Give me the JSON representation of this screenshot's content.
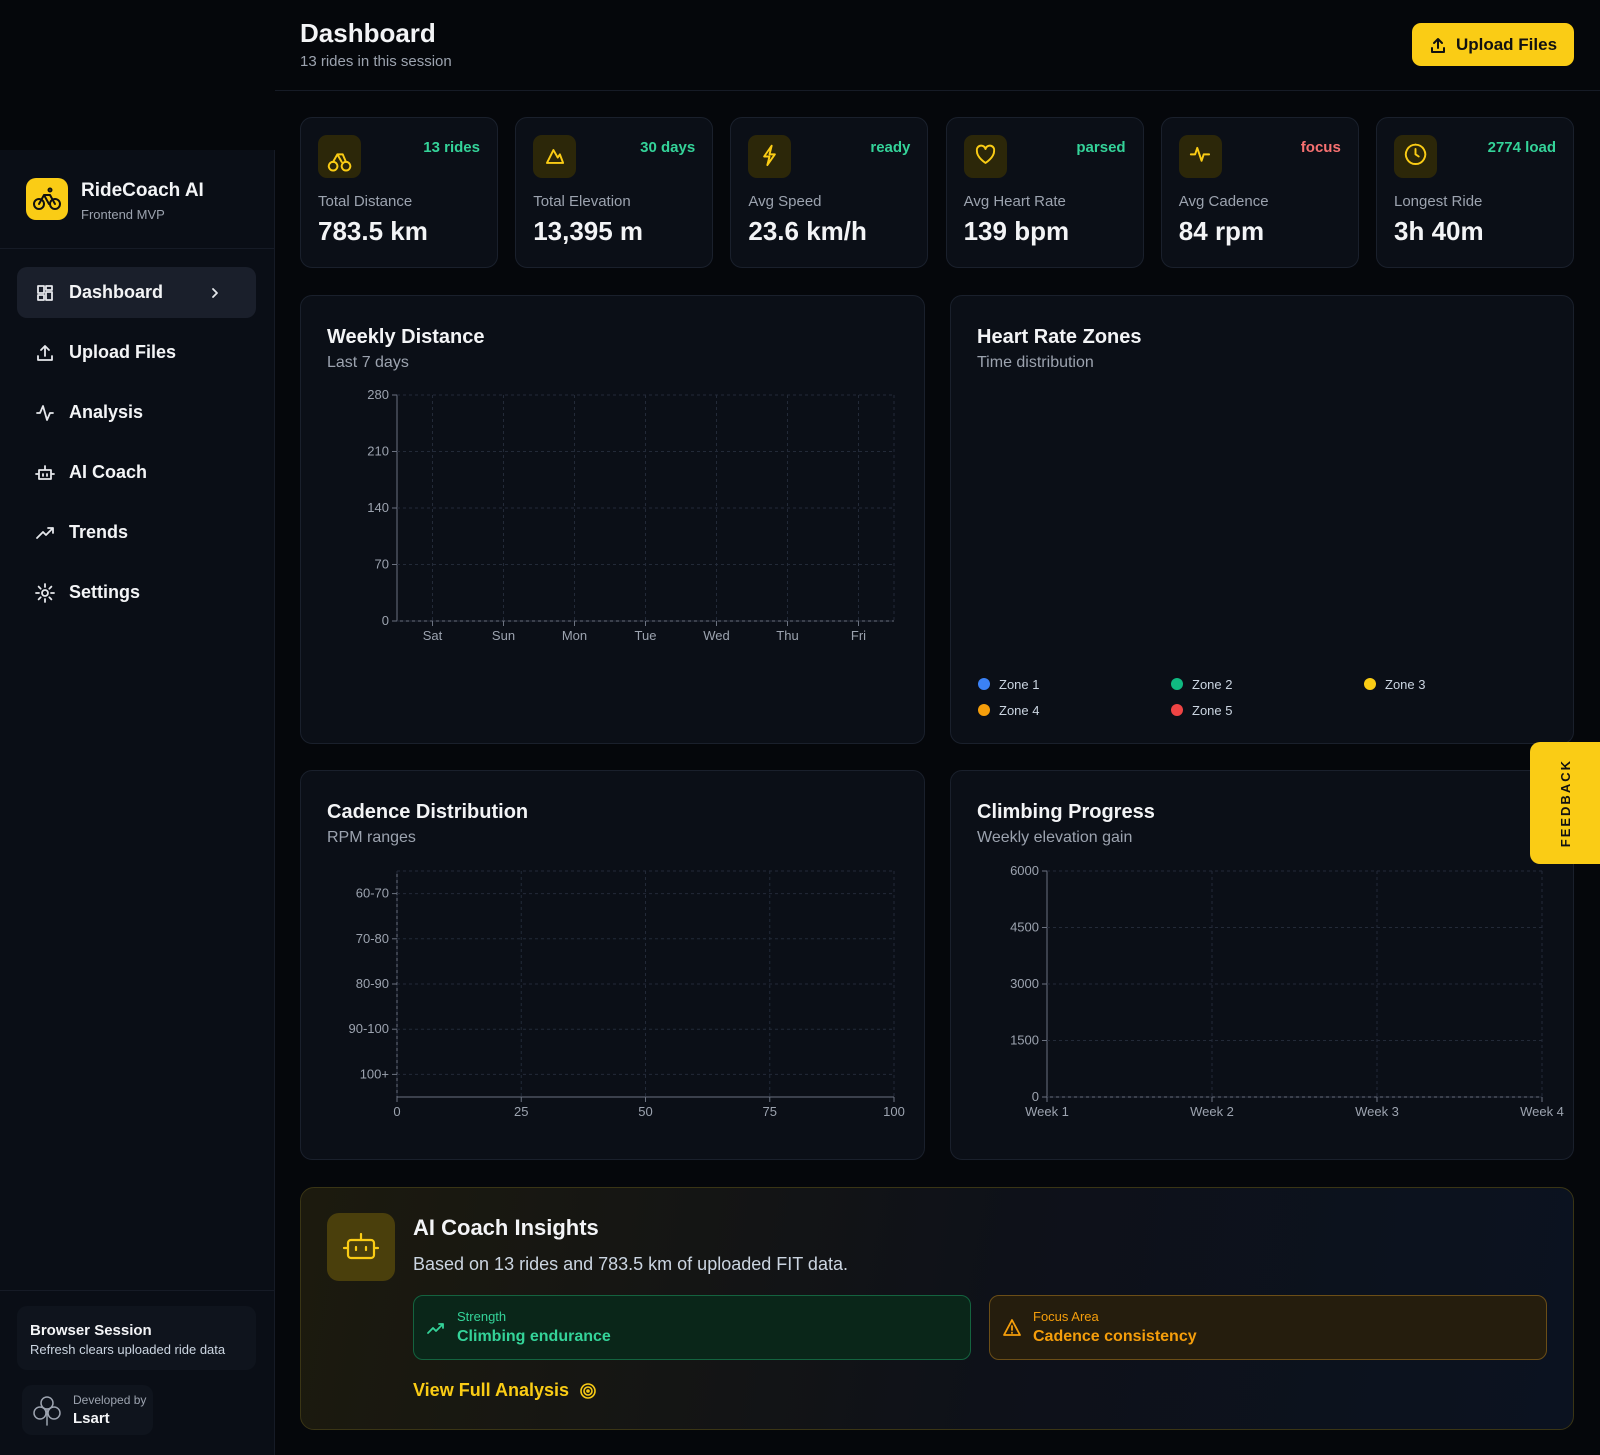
{
  "sidebar": {
    "brand": {
      "name": "RideCoach AI",
      "subtitle": "Frontend MVP"
    },
    "nav": [
      "Dashboard",
      "Upload Files",
      "Analysis",
      "AI Coach",
      "Trends",
      "Settings"
    ],
    "session": {
      "title": "Browser Session",
      "text": "Refresh clears uploaded ride data"
    },
    "developer": {
      "label": "Developed by",
      "name": "Lsart"
    }
  },
  "header": {
    "title": "Dashboard",
    "subtitle": "13 rides in this session",
    "button": "Upload Files"
  },
  "stats": [
    {
      "badge": "13 rides",
      "badge_color": "#34d399",
      "label": "Total Distance",
      "value": "783.5 km"
    },
    {
      "badge": "30 days",
      "badge_color": "#34d399",
      "label": "Total Elevation",
      "value": "13,395 m"
    },
    {
      "badge": "ready",
      "badge_color": "#34d399",
      "label": "Avg Speed",
      "value": "23.6 km/h"
    },
    {
      "badge": "parsed",
      "badge_color": "#34d399",
      "label": "Avg Heart Rate",
      "value": "139 bpm"
    },
    {
      "badge": "focus",
      "badge_color": "#f87171",
      "label": "Avg Cadence",
      "value": "84 rpm"
    },
    {
      "badge": "2774 load",
      "badge_color": "#34d399",
      "label": "Longest Ride",
      "value": "3h 40m"
    }
  ],
  "charts": {
    "weekly_distance": {
      "title": "Weekly Distance",
      "subtitle": "Last 7 days",
      "categories": [
        "Sat",
        "Sun",
        "Mon",
        "Tue",
        "Wed",
        "Thu",
        "Fri"
      ],
      "ylim": [
        0,
        280
      ],
      "yticks": [
        0,
        70,
        140,
        210,
        280
      ],
      "grid": true
    },
    "heart_rate_zones": {
      "title": "Heart Rate Zones",
      "subtitle": "Time distribution",
      "legend": [
        {
          "name": "Zone 1",
          "color": "#3b82f6"
        },
        {
          "name": "Zone 2",
          "color": "#10b981"
        },
        {
          "name": "Zone 3",
          "color": "#facc15"
        },
        {
          "name": "Zone 4",
          "color": "#f59e0b"
        },
        {
          "name": "Zone 5",
          "color": "#ef4444"
        }
      ]
    },
    "cadence_distribution": {
      "title": "Cadence Distribution",
      "subtitle": "RPM ranges",
      "categories": [
        "60-70",
        "70-80",
        "80-90",
        "90-100",
        "100+"
      ],
      "xlim": [
        0,
        100
      ],
      "xticks": [
        0,
        25,
        50,
        75,
        100
      ],
      "grid": true
    },
    "climbing_progress": {
      "title": "Climbing Progress",
      "subtitle": "Weekly elevation gain",
      "categories": [
        "Week 1",
        "Week 2",
        "Week 3",
        "Week 4"
      ],
      "ylim": [
        0,
        6000
      ],
      "yticks": [
        0,
        1500,
        3000,
        4500,
        6000
      ],
      "grid": true
    }
  },
  "insights": {
    "title": "AI Coach Insights",
    "text": "Based on 13 rides and 783.5 km of uploaded FIT data.",
    "strength": {
      "label": "Strength",
      "value": "Climbing endurance"
    },
    "focus": {
      "label": "Focus Area",
      "value": "Cadence consistency"
    },
    "link": "View Full Analysis"
  },
  "feedback": "FEEDBACK"
}
